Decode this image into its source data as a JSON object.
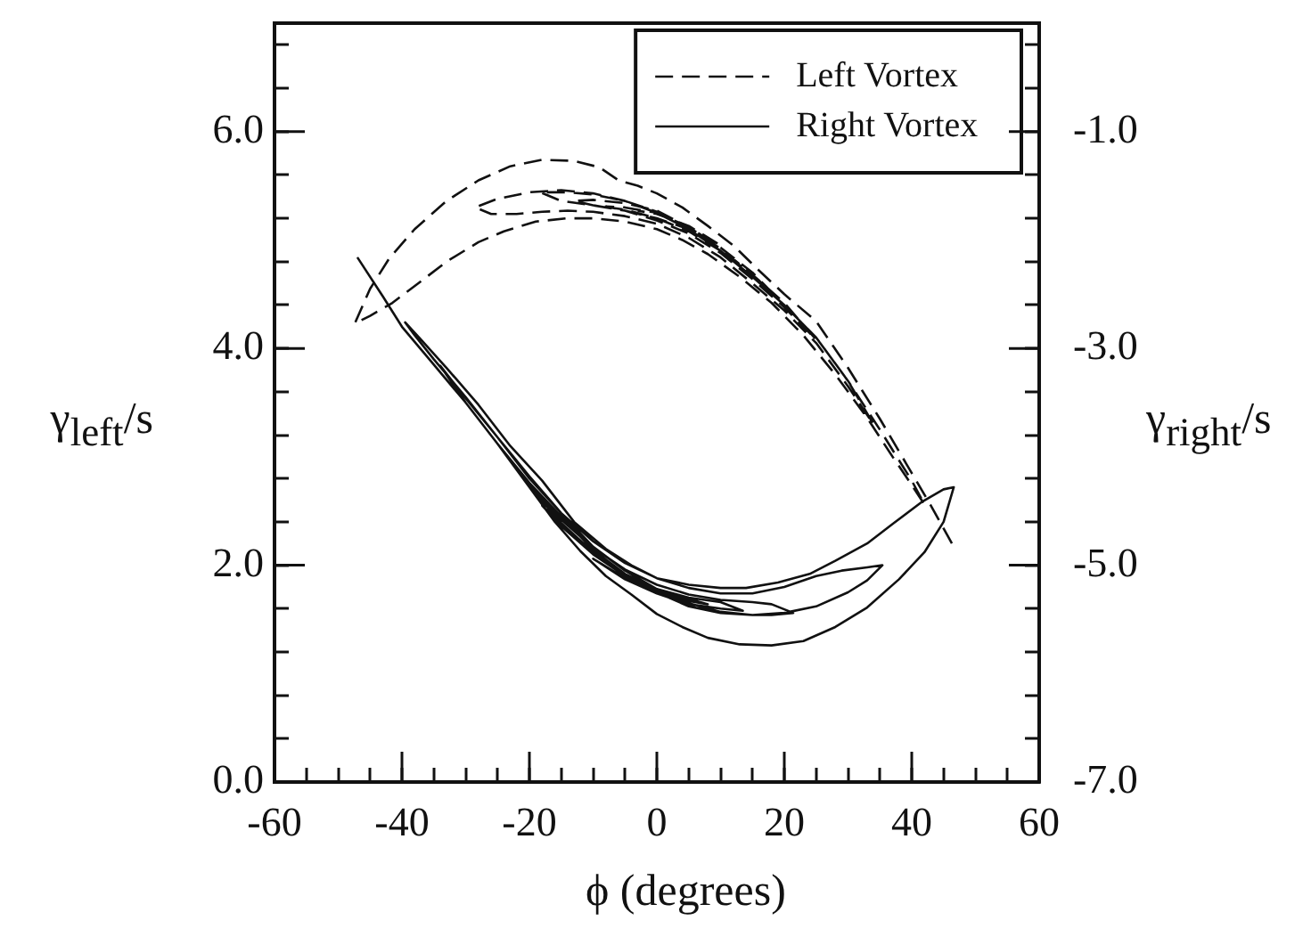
{
  "chart_data": {
    "type": "line",
    "xlabel": "ϕ (degrees)",
    "ylabel": "γ$_{left}$/s",
    "y2label": "γ$_{right}$/s",
    "xlim": [
      -60,
      60
    ],
    "xticks": [
      -60,
      {
        "value": -55,
        "label": null
      },
      {
        "value": -50,
        "label": null
      },
      {
        "value": -45,
        "label": null
      },
      -40,
      {
        "value": -35,
        "label": null
      },
      {
        "value": -30,
        "label": null
      },
      {
        "value": -25,
        "label": null
      },
      -20,
      {
        "value": -15,
        "label": null
      },
      {
        "value": -10,
        "label": null
      },
      {
        "value": -5,
        "label": null
      },
      0,
      {
        "value": 5,
        "label": null
      },
      {
        "value": 10,
        "label": null
      },
      {
        "value": 15,
        "label": null
      },
      20,
      {
        "value": 25,
        "label": null
      },
      {
        "value": 30,
        "label": null
      },
      {
        "value": 35,
        "label": null
      },
      40,
      {
        "value": 45,
        "label": null
      },
      {
        "value": 50,
        "label": null
      },
      {
        "value": 55,
        "label": null
      },
      60
    ],
    "ylim": [
      0,
      7
    ],
    "yticks": [
      {
        "value": 0,
        "label": "0.0"
      },
      {
        "value": 0.4,
        "label": null
      },
      {
        "value": 0.8,
        "label": null
      },
      {
        "value": 1.2,
        "label": null
      },
      {
        "value": 1.6,
        "label": null
      },
      {
        "value": 2,
        "label": "2.0"
      },
      {
        "value": 2.4,
        "label": null
      },
      {
        "value": 2.8,
        "label": null
      },
      {
        "value": 3.2,
        "label": null
      },
      {
        "value": 3.6,
        "label": null
      },
      {
        "value": 4,
        "label": "4.0"
      },
      {
        "value": 4.4,
        "label": null
      },
      {
        "value": 4.8,
        "label": null
      },
      {
        "value": 5.2,
        "label": null
      },
      {
        "value": 5.6,
        "label": null
      },
      {
        "value": 6,
        "label": "6.0"
      },
      {
        "value": 6.4,
        "label": null
      },
      {
        "value": 6.8,
        "label": null
      }
    ],
    "y2lim": [
      -7,
      0
    ],
    "y2ticks": [
      {
        "value": -7,
        "label": "-7.0"
      },
      {
        "value": -6.6,
        "label": null
      },
      {
        "value": -6.2,
        "label": null
      },
      {
        "value": -5.8,
        "label": null
      },
      {
        "value": -5.4,
        "label": null
      },
      {
        "value": -5,
        "label": "-5.0"
      },
      {
        "value": -4.6,
        "label": null
      },
      {
        "value": -4.2,
        "label": null
      },
      {
        "value": -3.8,
        "label": null
      },
      {
        "value": -3.4,
        "label": null
      },
      {
        "value": -3,
        "label": "-3.0"
      },
      {
        "value": -2.6,
        "label": null
      },
      {
        "value": -2.2,
        "label": null
      },
      {
        "value": -1.8,
        "label": null
      },
      {
        "value": -1.4,
        "label": null
      },
      {
        "value": -1,
        "label": "-1.0"
      },
      {
        "value": -0.6,
        "label": null
      },
      {
        "value": -0.2,
        "label": null
      }
    ],
    "legend": "top right",
    "marker": "none",
    "grid": false,
    "series": [
      {
        "name": "Left Vortex",
        "color": "#111111",
        "line_style": "dashed",
        "x": [
          46.3,
          43,
          40,
          35,
          30,
          25,
          20,
          16,
          12,
          8,
          4,
          0,
          -3,
          -6,
          -9,
          -13,
          -18,
          -23,
          -28,
          -33,
          -38,
          -42,
          -45,
          -47.4,
          -45,
          -41.5,
          -37,
          -33,
          -28,
          -24,
          -19,
          -14,
          -10,
          -5,
          0,
          4,
          8,
          13,
          18,
          23,
          28,
          33,
          37,
          40,
          42,
          40,
          35,
          30,
          25,
          20,
          15,
          10,
          5,
          0,
          -5,
          -10,
          -15,
          -20,
          -25,
          -28.5,
          -26,
          -22,
          -18,
          -14,
          -10,
          -5,
          0,
          5,
          10,
          15,
          20,
          25,
          30,
          34,
          30,
          25,
          20,
          15,
          10,
          5,
          0,
          -5,
          -10,
          -14,
          -18.3,
          -15,
          -10,
          -5,
          0,
          5,
          10,
          15,
          20,
          25,
          20,
          15,
          10,
          5,
          0,
          -5,
          -10,
          -13,
          -10,
          -5,
          0,
          5,
          10,
          15,
          18,
          15,
          10,
          5,
          0,
          -5,
          -8,
          -5,
          0,
          5,
          10,
          5,
          0,
          -3
        ],
        "values": [
          2.2,
          2.55,
          2.85,
          3.35,
          3.82,
          4.25,
          4.5,
          4.72,
          4.95,
          5.13,
          5.3,
          5.43,
          5.5,
          5.55,
          5.67,
          5.73,
          5.74,
          5.68,
          5.55,
          5.36,
          5.1,
          4.83,
          4.55,
          4.23,
          4.3,
          4.42,
          4.62,
          4.8,
          4.98,
          5.08,
          5.17,
          5.2,
          5.2,
          5.17,
          5.1,
          5.0,
          4.87,
          4.66,
          4.42,
          4.12,
          3.76,
          3.36,
          3.0,
          2.74,
          2.56,
          2.78,
          3.25,
          3.7,
          4.1,
          4.4,
          4.66,
          4.9,
          5.1,
          5.25,
          5.36,
          5.43,
          5.46,
          5.44,
          5.38,
          5.3,
          5.24,
          5.24,
          5.26,
          5.27,
          5.26,
          5.22,
          5.15,
          5.02,
          4.84,
          4.6,
          4.35,
          4.05,
          3.65,
          3.3,
          3.7,
          4.1,
          4.4,
          4.66,
          4.9,
          5.1,
          5.26,
          5.36,
          5.42,
          5.44,
          5.44,
          5.36,
          5.32,
          5.27,
          5.18,
          5.06,
          4.88,
          4.64,
          4.38,
          4.08,
          4.42,
          4.68,
          4.92,
          5.12,
          5.27,
          5.34,
          5.37,
          5.36,
          5.32,
          5.28,
          5.2,
          5.08,
          4.9,
          4.68,
          4.52,
          4.7,
          4.93,
          5.12,
          5.25,
          5.3,
          5.31,
          5.27,
          5.2,
          5.1,
          4.95,
          5.13,
          5.24,
          5.27
        ]
      },
      {
        "name": "Right Vortex",
        "color": "#111111",
        "line_style": "solid",
        "axis": "y2",
        "x": [
          -47,
          -43,
          -40,
          -35,
          -30,
          -25,
          -20,
          -16,
          -12,
          -8,
          -4,
          0,
          4,
          8,
          13,
          18,
          23,
          28,
          33,
          38,
          42,
          45,
          46.6,
          45,
          41.5,
          37,
          33,
          28,
          24,
          19,
          14,
          10,
          5,
          0,
          -4,
          -8,
          -13,
          -18,
          -23,
          -28,
          -33,
          -37,
          -39.5,
          -38,
          -35,
          -30,
          -25,
          -20,
          -15,
          -10,
          -5,
          0,
          5,
          10,
          15,
          20,
          25,
          30,
          33,
          35.4,
          33,
          29,
          25,
          20,
          15,
          10,
          5,
          0,
          -5,
          -10,
          -15,
          -20,
          -25,
          -30,
          -34,
          -30,
          -25,
          -20,
          -15,
          -10,
          -5,
          0,
          5,
          10,
          15,
          18,
          21.4,
          18,
          15,
          10,
          5,
          0,
          -5,
          -10,
          -15,
          -20,
          -25,
          -20,
          -15,
          -10,
          -5,
          0,
          5,
          10,
          13.5,
          10,
          5,
          0,
          -5,
          -10,
          -15,
          -18,
          -15,
          -10,
          -5,
          0,
          5,
          8,
          5,
          0,
          -5,
          -10,
          -5,
          0,
          3
        ],
        "values": [
          -2.16,
          -2.52,
          -2.8,
          -3.15,
          -3.5,
          -3.88,
          -4.28,
          -4.6,
          -4.87,
          -5.1,
          -5.27,
          -5.45,
          -5.57,
          -5.67,
          -5.73,
          -5.74,
          -5.7,
          -5.57,
          -5.39,
          -5.13,
          -4.88,
          -4.6,
          -4.28,
          -4.3,
          -4.42,
          -4.62,
          -4.8,
          -4.96,
          -5.08,
          -5.16,
          -5.21,
          -5.21,
          -5.18,
          -5.12,
          -5.0,
          -4.85,
          -4.6,
          -4.22,
          -3.9,
          -3.52,
          -3.18,
          -2.92,
          -2.76,
          -2.88,
          -3.1,
          -3.45,
          -3.82,
          -4.2,
          -4.52,
          -4.83,
          -5.05,
          -5.22,
          -5.35,
          -5.43,
          -5.46,
          -5.44,
          -5.38,
          -5.25,
          -5.14,
          -5.0,
          -5.02,
          -5.05,
          -5.1,
          -5.2,
          -5.26,
          -5.26,
          -5.21,
          -5.12,
          -4.98,
          -4.78,
          -4.52,
          -4.18,
          -3.82,
          -3.46,
          -3.16,
          -3.5,
          -3.88,
          -4.24,
          -4.55,
          -4.86,
          -5.08,
          -5.25,
          -5.38,
          -5.44,
          -5.46,
          -5.46,
          -5.44,
          -5.36,
          -5.34,
          -5.32,
          -5.27,
          -5.18,
          -5.04,
          -4.84,
          -4.58,
          -4.25,
          -3.88,
          -4.28,
          -4.61,
          -4.88,
          -5.1,
          -5.26,
          -5.36,
          -5.4,
          -5.42,
          -5.34,
          -5.3,
          -5.22,
          -5.08,
          -4.88,
          -4.62,
          -4.45,
          -4.64,
          -4.9,
          -5.1,
          -5.25,
          -5.33,
          -5.36,
          -5.31,
          -5.23,
          -5.12,
          -4.94,
          -5.13,
          -5.26,
          -5.3
        ]
      }
    ]
  }
}
